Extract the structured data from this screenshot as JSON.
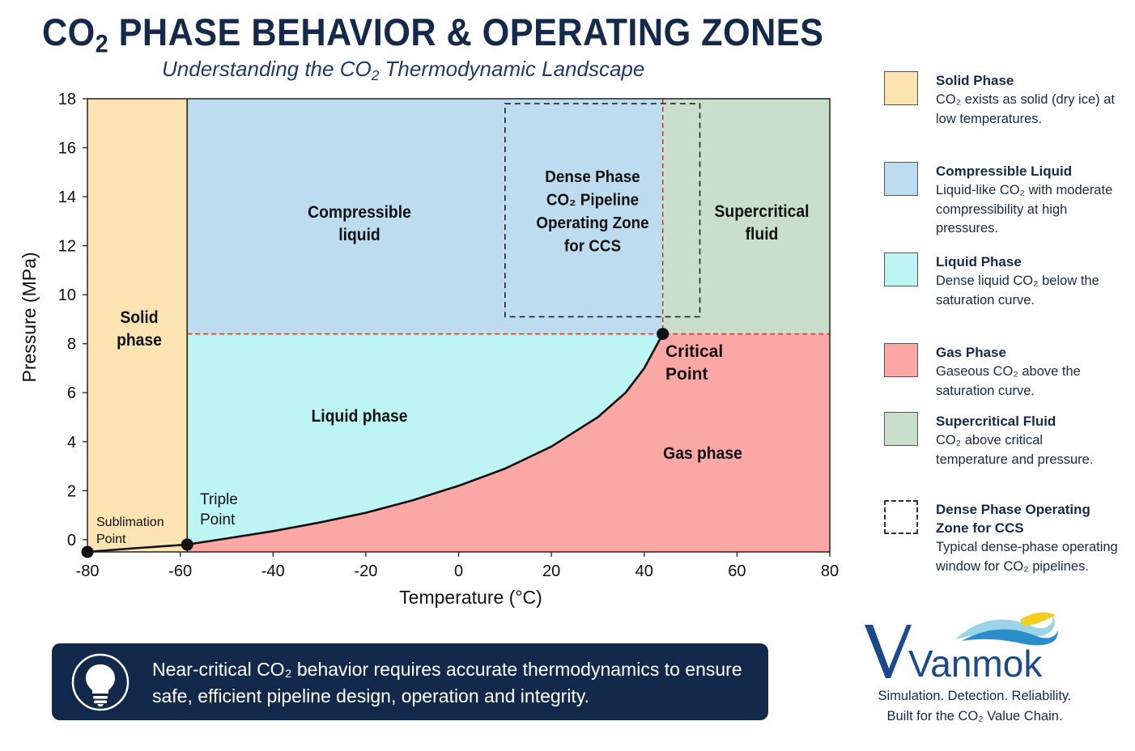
{
  "header": {
    "title_pre": "CO",
    "title_sub": "2",
    "title_post": " PHASE BEHAVIOR & OPERATING ZONES",
    "subtitle_pre": "Understanding the CO",
    "subtitle_sub": "2",
    "subtitle_post": " Thermodynamic Landscape"
  },
  "chart_data": {
    "type": "area",
    "title": "",
    "xlabel": "Temperature (°C)",
    "ylabel": "Pressure (MPa)",
    "xlim": [
      -80,
      80
    ],
    "ylim": [
      -0.5,
      18
    ],
    "x_ticks": [
      -80,
      -60,
      -40,
      -20,
      0,
      20,
      40,
      60,
      80
    ],
    "y_ticks": [
      0,
      2,
      4,
      6,
      8,
      10,
      12,
      14,
      16,
      18
    ],
    "grid": false,
    "solid_boundary_temperature": -58.5,
    "critical_point": {
      "temperature": 44,
      "pressure": 8.4
    },
    "triple_point": {
      "temperature": -58.5,
      "pressure": -0.2
    },
    "sublimation_point": {
      "temperature": -80,
      "pressure": -0.5
    },
    "saturation_curve": {
      "x": [
        -80,
        -70,
        -58.5,
        -50,
        -40,
        -30,
        -20,
        -10,
        0,
        10,
        20,
        30,
        36,
        40,
        44
      ],
      "y": [
        -0.5,
        -0.35,
        -0.2,
        0.05,
        0.35,
        0.7,
        1.1,
        1.6,
        2.2,
        2.9,
        3.8,
        5.0,
        6.0,
        7.0,
        8.4
      ]
    },
    "dense_phase_zone": {
      "x": [
        10,
        52
      ],
      "y": [
        9.1,
        17.8
      ]
    },
    "colors": {
      "solid": "#fbe3b2",
      "compressible_liquid": "#bedcf0",
      "liquid": "#bdf4f4",
      "gas": "#fba7a6",
      "supercritical": "#c9decb",
      "curve": "#111111",
      "reference_lines": "#c0392b"
    },
    "region_labels": [
      {
        "key": "solid",
        "lines": [
          "Solid",
          "phase"
        ]
      },
      {
        "key": "compressible",
        "lines": [
          "Compressible",
          "liquid"
        ]
      },
      {
        "key": "liquid",
        "lines": [
          "Liquid phase"
        ]
      },
      {
        "key": "gas",
        "lines": [
          "Gas phase"
        ]
      },
      {
        "key": "supercritical",
        "lines": [
          "Supercritical",
          "fluid"
        ]
      },
      {
        "key": "dense",
        "lines": [
          "Dense Phase",
          "CO₂ Pipeline",
          "Operating Zone",
          "for CCS"
        ]
      }
    ],
    "point_labels": [
      {
        "key": "critical",
        "lines": [
          "Critical",
          "Point"
        ]
      },
      {
        "key": "triple",
        "lines": [
          "Triple",
          "Point"
        ]
      },
      {
        "key": "sublimation",
        "lines": [
          "Sublimation",
          "Point"
        ]
      }
    ]
  },
  "legend": [
    {
      "key": "solid",
      "title": "Solid Phase",
      "color": "#fbe3b2",
      "desc": "CO₂ exists as solid (dry ice) at low temperatures."
    },
    {
      "key": "compressible",
      "title": "Compressible Liquid",
      "color": "#bedcf0",
      "desc": "Liquid-like CO₂ with moderate compressibility at high pressures."
    },
    {
      "key": "liquid",
      "title": "Liquid Phase",
      "color": "#bdf4f4",
      "desc": "Dense liquid CO₂ below the saturation curve."
    },
    {
      "key": "gas",
      "title": "Gas Phase",
      "color": "#fba7a6",
      "desc": "Gaseous CO₂ above the saturation curve."
    },
    {
      "key": "supercritical",
      "title": "Supercritical Fluid",
      "color": "#c9decb",
      "desc": "CO₂ above critical temperature and pressure."
    },
    {
      "key": "dense",
      "title": "Dense Phase Operating Zone for CCS",
      "color": "",
      "desc": "Typical dense-phase operating window for CO₂ pipelines."
    }
  ],
  "banner": {
    "icon": "lightbulb-icon",
    "line1": "Near-critical CO₂ behavior requires accurate thermodynamics to ensure",
    "line2": "safe, efficient pipeline design, operation and integrity."
  },
  "brand": {
    "logo_text": "Vanmok",
    "tagline1": "Simulation. Detection. Reliability.",
    "tagline2": "Built for the CO₂ Value Chain."
  }
}
